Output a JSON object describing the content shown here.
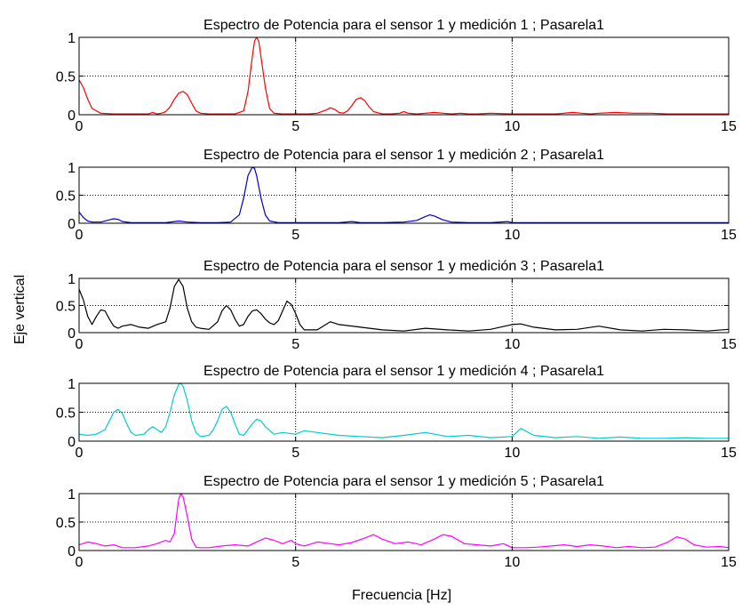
{
  "figure": {
    "xlabel": "Frecuencia [Hz]",
    "ylabel": "Eje vertical"
  },
  "chart_data": [
    {
      "type": "line",
      "title": "Espectro de Potencia para el sensor 1 y medición 1 ; Pasarela1",
      "xlabel": "",
      "ylabel": "",
      "xlim": [
        0,
        15
      ],
      "ylim": [
        0,
        1
      ],
      "xticks": [
        0,
        5,
        10,
        15
      ],
      "yticks": [
        0,
        0.5,
        1
      ],
      "grid": true,
      "color": "#ff0000",
      "series": [
        {
          "x": [
            0,
            0.1,
            0.2,
            0.3,
            0.5,
            0.8,
            1.2,
            1.6,
            1.7,
            1.8,
            1.9,
            2.0,
            2.1,
            2.2,
            2.3,
            2.4,
            2.5,
            2.6,
            2.7,
            2.8,
            3.0,
            3.3,
            3.6,
            3.8,
            3.9,
            4.0,
            4.05,
            4.1,
            4.15,
            4.2,
            4.3,
            4.4,
            4.5,
            4.7,
            5.0,
            5.3,
            5.5,
            5.7,
            5.8,
            5.9,
            6.0,
            6.1,
            6.2,
            6.3,
            6.4,
            6.5,
            6.6,
            6.7,
            6.8,
            7.0,
            7.2,
            7.4,
            7.5,
            7.6,
            7.8,
            8.0,
            8.2,
            8.4,
            8.6,
            8.8,
            9.0,
            9.2,
            9.5,
            10.0,
            10.5,
            11.0,
            11.2,
            11.4,
            11.6,
            11.8,
            12.0,
            12.4,
            12.8,
            13.2,
            13.6,
            14.0,
            14.5,
            15.0
          ],
          "y": [
            0.45,
            0.35,
            0.2,
            0.08,
            0.02,
            0.01,
            0.01,
            0.01,
            0.03,
            0.01,
            0.02,
            0.04,
            0.1,
            0.2,
            0.28,
            0.3,
            0.26,
            0.15,
            0.05,
            0.02,
            0.01,
            0.01,
            0.01,
            0.05,
            0.3,
            0.75,
            0.95,
            1.0,
            0.95,
            0.75,
            0.35,
            0.08,
            0.02,
            0.01,
            0.01,
            0.01,
            0.02,
            0.06,
            0.09,
            0.07,
            0.03,
            0.02,
            0.05,
            0.12,
            0.2,
            0.22,
            0.18,
            0.1,
            0.04,
            0.01,
            0.01,
            0.02,
            0.04,
            0.02,
            0.01,
            0.02,
            0.03,
            0.02,
            0.01,
            0.02,
            0.01,
            0.01,
            0.02,
            0.01,
            0.01,
            0.01,
            0.02,
            0.03,
            0.02,
            0.01,
            0.02,
            0.03,
            0.02,
            0.02,
            0.01,
            0.01,
            0.01,
            0.01
          ]
        }
      ]
    },
    {
      "type": "line",
      "title": "Espectro de Potencia para el sensor 1 y medición 2 ; Pasarela1",
      "xlabel": "",
      "ylabel": "",
      "xlim": [
        0,
        15
      ],
      "ylim": [
        0,
        1
      ],
      "xticks": [
        0,
        5,
        10,
        15
      ],
      "yticks": [
        0,
        0.5,
        1
      ],
      "grid": true,
      "color": "#0000cc",
      "series": [
        {
          "x": [
            0,
            0.1,
            0.2,
            0.3,
            0.5,
            0.7,
            0.8,
            0.9,
            1.0,
            1.2,
            1.5,
            2.0,
            2.3,
            2.5,
            2.8,
            3.2,
            3.5,
            3.7,
            3.8,
            3.9,
            4.0,
            4.05,
            4.1,
            4.2,
            4.3,
            4.4,
            4.6,
            5.0,
            5.5,
            6.0,
            6.3,
            6.5,
            7.0,
            7.5,
            7.8,
            8.0,
            8.1,
            8.2,
            8.4,
            8.6,
            9.0,
            9.5,
            9.9,
            10.0,
            10.5,
            11.0,
            12.0,
            13.0,
            14.0,
            15.0
          ],
          "y": [
            0.2,
            0.1,
            0.04,
            0.02,
            0.02,
            0.06,
            0.08,
            0.07,
            0.03,
            0.01,
            0.01,
            0.01,
            0.04,
            0.02,
            0.01,
            0.01,
            0.02,
            0.15,
            0.45,
            0.85,
            1.0,
            0.98,
            0.85,
            0.45,
            0.15,
            0.04,
            0.01,
            0.01,
            0.01,
            0.01,
            0.03,
            0.01,
            0.01,
            0.02,
            0.05,
            0.12,
            0.15,
            0.13,
            0.06,
            0.02,
            0.01,
            0.01,
            0.03,
            0.01,
            0.01,
            0.01,
            0.01,
            0.01,
            0.01,
            0.01
          ]
        }
      ]
    },
    {
      "type": "line",
      "title": "Espectro de Potencia para el sensor 1 y medición 3 ; Pasarela1",
      "xlabel": "",
      "ylabel": "",
      "xlim": [
        0,
        15
      ],
      "ylim": [
        0,
        1
      ],
      "xticks": [
        0,
        5,
        10,
        15
      ],
      "yticks": [
        0,
        0.5,
        1
      ],
      "grid": true,
      "color": "#000000",
      "series": [
        {
          "x": [
            0,
            0.1,
            0.2,
            0.3,
            0.4,
            0.5,
            0.6,
            0.7,
            0.8,
            0.9,
            1.0,
            1.2,
            1.4,
            1.6,
            1.8,
            2.0,
            2.1,
            2.2,
            2.3,
            2.4,
            2.5,
            2.6,
            2.7,
            2.8,
            3.0,
            3.2,
            3.3,
            3.4,
            3.5,
            3.6,
            3.7,
            3.8,
            3.9,
            4.0,
            4.1,
            4.2,
            4.3,
            4.4,
            4.5,
            4.6,
            4.7,
            4.8,
            4.9,
            5.0,
            5.1,
            5.2,
            5.5,
            5.8,
            6.0,
            6.5,
            7.0,
            7.5,
            8.0,
            8.5,
            9.0,
            9.5,
            10.0,
            10.2,
            10.5,
            11.0,
            11.5,
            12.0,
            12.5,
            13.0,
            13.5,
            14.0,
            14.5,
            15.0
          ],
          "y": [
            0.8,
            0.6,
            0.3,
            0.15,
            0.3,
            0.42,
            0.4,
            0.25,
            0.12,
            0.08,
            0.12,
            0.15,
            0.1,
            0.08,
            0.15,
            0.2,
            0.45,
            0.85,
            0.98,
            0.85,
            0.45,
            0.2,
            0.1,
            0.08,
            0.06,
            0.2,
            0.4,
            0.5,
            0.42,
            0.25,
            0.12,
            0.15,
            0.3,
            0.4,
            0.42,
            0.35,
            0.25,
            0.18,
            0.15,
            0.22,
            0.4,
            0.58,
            0.52,
            0.35,
            0.15,
            0.05,
            0.05,
            0.2,
            0.15,
            0.1,
            0.05,
            0.03,
            0.08,
            0.05,
            0.03,
            0.06,
            0.15,
            0.16,
            0.1,
            0.05,
            0.06,
            0.12,
            0.05,
            0.03,
            0.06,
            0.05,
            0.03,
            0.06
          ]
        }
      ]
    },
    {
      "type": "line",
      "title": "Espectro de Potencia para el sensor 1 y medición 4 ; Pasarela1",
      "xlabel": "",
      "ylabel": "",
      "xlim": [
        0,
        15
      ],
      "ylim": [
        0,
        1
      ],
      "xticks": [
        0,
        5,
        10,
        15
      ],
      "yticks": [
        0,
        0.5,
        1
      ],
      "grid": true,
      "color": "#00cccc",
      "series": [
        {
          "x": [
            0,
            0.2,
            0.4,
            0.6,
            0.7,
            0.8,
            0.9,
            1.0,
            1.1,
            1.2,
            1.3,
            1.5,
            1.6,
            1.7,
            1.8,
            1.9,
            2.0,
            2.1,
            2.2,
            2.3,
            2.35,
            2.4,
            2.5,
            2.6,
            2.7,
            2.8,
            3.0,
            3.1,
            3.2,
            3.3,
            3.4,
            3.5,
            3.6,
            3.7,
            3.8,
            3.9,
            4.0,
            4.1,
            4.2,
            4.3,
            4.5,
            4.7,
            5.0,
            5.2,
            5.5,
            6.0,
            6.5,
            7.0,
            7.5,
            8.0,
            8.5,
            9.0,
            9.5,
            10.0,
            10.2,
            10.5,
            11.0,
            11.5,
            12.0,
            12.5,
            13.0,
            13.5,
            14.0,
            14.5,
            15.0
          ],
          "y": [
            0.12,
            0.1,
            0.12,
            0.2,
            0.35,
            0.5,
            0.55,
            0.48,
            0.3,
            0.15,
            0.1,
            0.12,
            0.2,
            0.25,
            0.2,
            0.15,
            0.25,
            0.5,
            0.8,
            0.98,
            1.0,
            0.95,
            0.7,
            0.35,
            0.15,
            0.08,
            0.1,
            0.2,
            0.35,
            0.55,
            0.6,
            0.5,
            0.3,
            0.12,
            0.1,
            0.2,
            0.3,
            0.38,
            0.35,
            0.25,
            0.12,
            0.15,
            0.12,
            0.18,
            0.15,
            0.1,
            0.08,
            0.06,
            0.1,
            0.15,
            0.08,
            0.1,
            0.06,
            0.08,
            0.22,
            0.1,
            0.06,
            0.08,
            0.05,
            0.07,
            0.05,
            0.05,
            0.06,
            0.05,
            0.05
          ]
        }
      ]
    },
    {
      "type": "line",
      "title": "Espectro de Potencia para el sensor 1 y medición 5 ; Pasarela1",
      "xlabel": "",
      "ylabel": "",
      "xlim": [
        0,
        15
      ],
      "ylim": [
        0,
        1
      ],
      "xticks": [
        0,
        5,
        10,
        15
      ],
      "yticks": [
        0,
        0.5,
        1
      ],
      "grid": true,
      "color": "#ff00ff",
      "series": [
        {
          "x": [
            0,
            0.2,
            0.4,
            0.6,
            0.8,
            1.0,
            1.3,
            1.6,
            1.8,
            2.0,
            2.1,
            2.2,
            2.25,
            2.3,
            2.35,
            2.4,
            2.5,
            2.6,
            2.7,
            2.8,
            3.0,
            3.3,
            3.6,
            3.9,
            4.1,
            4.3,
            4.5,
            4.7,
            4.9,
            5.0,
            5.2,
            5.5,
            5.8,
            6.0,
            6.3,
            6.6,
            6.8,
            7.0,
            7.3,
            7.6,
            7.9,
            8.2,
            8.4,
            8.6,
            8.9,
            9.2,
            9.5,
            9.8,
            10.0,
            10.3,
            10.6,
            10.9,
            11.2,
            11.5,
            11.8,
            12.1,
            12.4,
            12.7,
            13.0,
            13.3,
            13.6,
            13.8,
            14.0,
            14.2,
            14.5,
            14.8,
            15.0
          ],
          "y": [
            0.1,
            0.15,
            0.12,
            0.08,
            0.1,
            0.05,
            0.05,
            0.08,
            0.12,
            0.18,
            0.15,
            0.3,
            0.6,
            0.9,
            1.0,
            0.95,
            0.6,
            0.2,
            0.06,
            0.05,
            0.05,
            0.08,
            0.1,
            0.08,
            0.15,
            0.22,
            0.18,
            0.12,
            0.18,
            0.12,
            0.08,
            0.15,
            0.12,
            0.1,
            0.14,
            0.22,
            0.28,
            0.2,
            0.12,
            0.15,
            0.1,
            0.2,
            0.28,
            0.25,
            0.12,
            0.1,
            0.08,
            0.12,
            0.05,
            0.05,
            0.06,
            0.08,
            0.1,
            0.07,
            0.1,
            0.08,
            0.05,
            0.07,
            0.05,
            0.06,
            0.15,
            0.24,
            0.2,
            0.1,
            0.06,
            0.07,
            0.05
          ]
        }
      ]
    }
  ]
}
